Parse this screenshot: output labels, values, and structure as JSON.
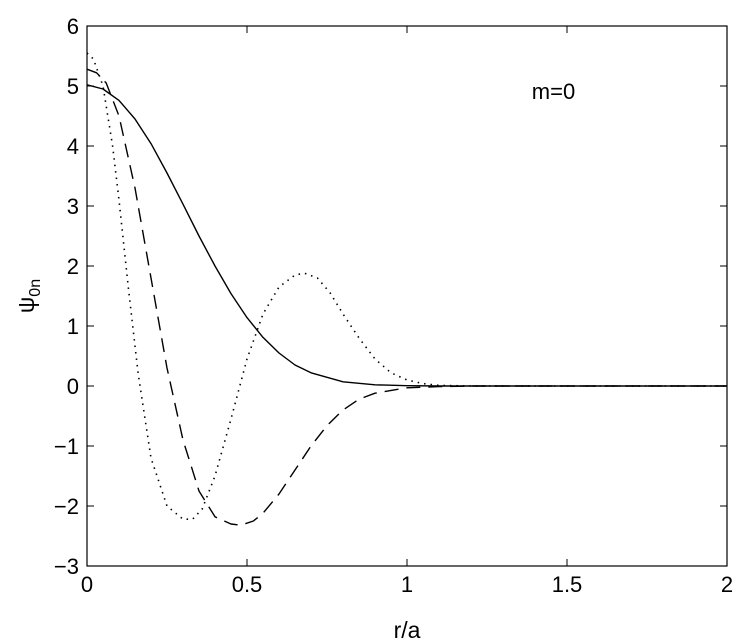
{
  "chart_data": {
    "type": "line",
    "xlabel": "r/a",
    "ylabel": "ψ",
    "ylabel_subscript": "0n",
    "annotation": "m=0",
    "xlim": [
      0,
      2
    ],
    "ylim": [
      -3,
      6
    ],
    "xticks": [
      0,
      0.5,
      1,
      1.5,
      2
    ],
    "xtick_labels": [
      "0",
      "0.5",
      "1",
      "1.5",
      "2"
    ],
    "yticks": [
      -3,
      -2,
      -1,
      0,
      1,
      2,
      3,
      4,
      5,
      6
    ],
    "ytick_labels": [
      "−3",
      "−2",
      "−1",
      "0",
      "1",
      "2",
      "3",
      "4",
      "5",
      "6"
    ],
    "grid": false,
    "series": [
      {
        "style": "solid",
        "color": "#000000",
        "x": [
          0,
          0.05,
          0.1,
          0.15,
          0.2,
          0.25,
          0.3,
          0.35,
          0.4,
          0.45,
          0.5,
          0.55,
          0.6,
          0.65,
          0.7,
          0.8,
          0.9,
          1.0,
          1.1,
          1.2,
          1.4,
          1.6,
          1.8,
          2.0
        ],
        "y": [
          5.02,
          4.95,
          4.76,
          4.45,
          4.04,
          3.55,
          3.03,
          2.5,
          2.0,
          1.54,
          1.14,
          0.81,
          0.55,
          0.35,
          0.22,
          0.07,
          0.02,
          0.005,
          0.0,
          0.0,
          0.0,
          0.0,
          0.0,
          0.0
        ]
      },
      {
        "style": "dashed",
        "color": "#000000",
        "x": [
          0,
          0.03,
          0.06,
          0.1,
          0.15,
          0.2,
          0.25,
          0.3,
          0.35,
          0.4,
          0.45,
          0.48,
          0.52,
          0.55,
          0.6,
          0.65,
          0.7,
          0.75,
          0.8,
          0.85,
          0.9,
          1.0,
          1.1,
          1.2,
          1.4,
          1.6,
          1.8,
          2.0
        ],
        "y": [
          5.28,
          5.22,
          5.05,
          4.5,
          3.3,
          1.8,
          0.3,
          -0.9,
          -1.75,
          -2.18,
          -2.3,
          -2.32,
          -2.25,
          -2.12,
          -1.8,
          -1.4,
          -1.0,
          -0.66,
          -0.4,
          -0.22,
          -0.12,
          -0.03,
          -0.01,
          0.0,
          0.0,
          0.0,
          0.0,
          0.0
        ]
      },
      {
        "style": "dotted",
        "color": "#000000",
        "x": [
          0,
          0.02,
          0.05,
          0.08,
          0.1,
          0.13,
          0.16,
          0.2,
          0.25,
          0.3,
          0.33,
          0.36,
          0.4,
          0.45,
          0.5,
          0.55,
          0.6,
          0.65,
          0.68,
          0.72,
          0.76,
          0.8,
          0.85,
          0.9,
          0.95,
          1.0,
          1.05,
          1.1,
          1.2,
          1.4,
          1.6,
          1.8,
          2.0
        ],
        "y": [
          5.55,
          5.45,
          5.0,
          4.0,
          3.1,
          1.6,
          0.2,
          -1.2,
          -2.0,
          -2.22,
          -2.22,
          -2.05,
          -1.5,
          -0.55,
          0.45,
          1.2,
          1.65,
          1.85,
          1.88,
          1.8,
          1.55,
          1.2,
          0.8,
          0.45,
          0.22,
          0.1,
          0.04,
          0.01,
          0.0,
          0.0,
          0.0,
          0.0,
          0.0
        ]
      }
    ]
  }
}
